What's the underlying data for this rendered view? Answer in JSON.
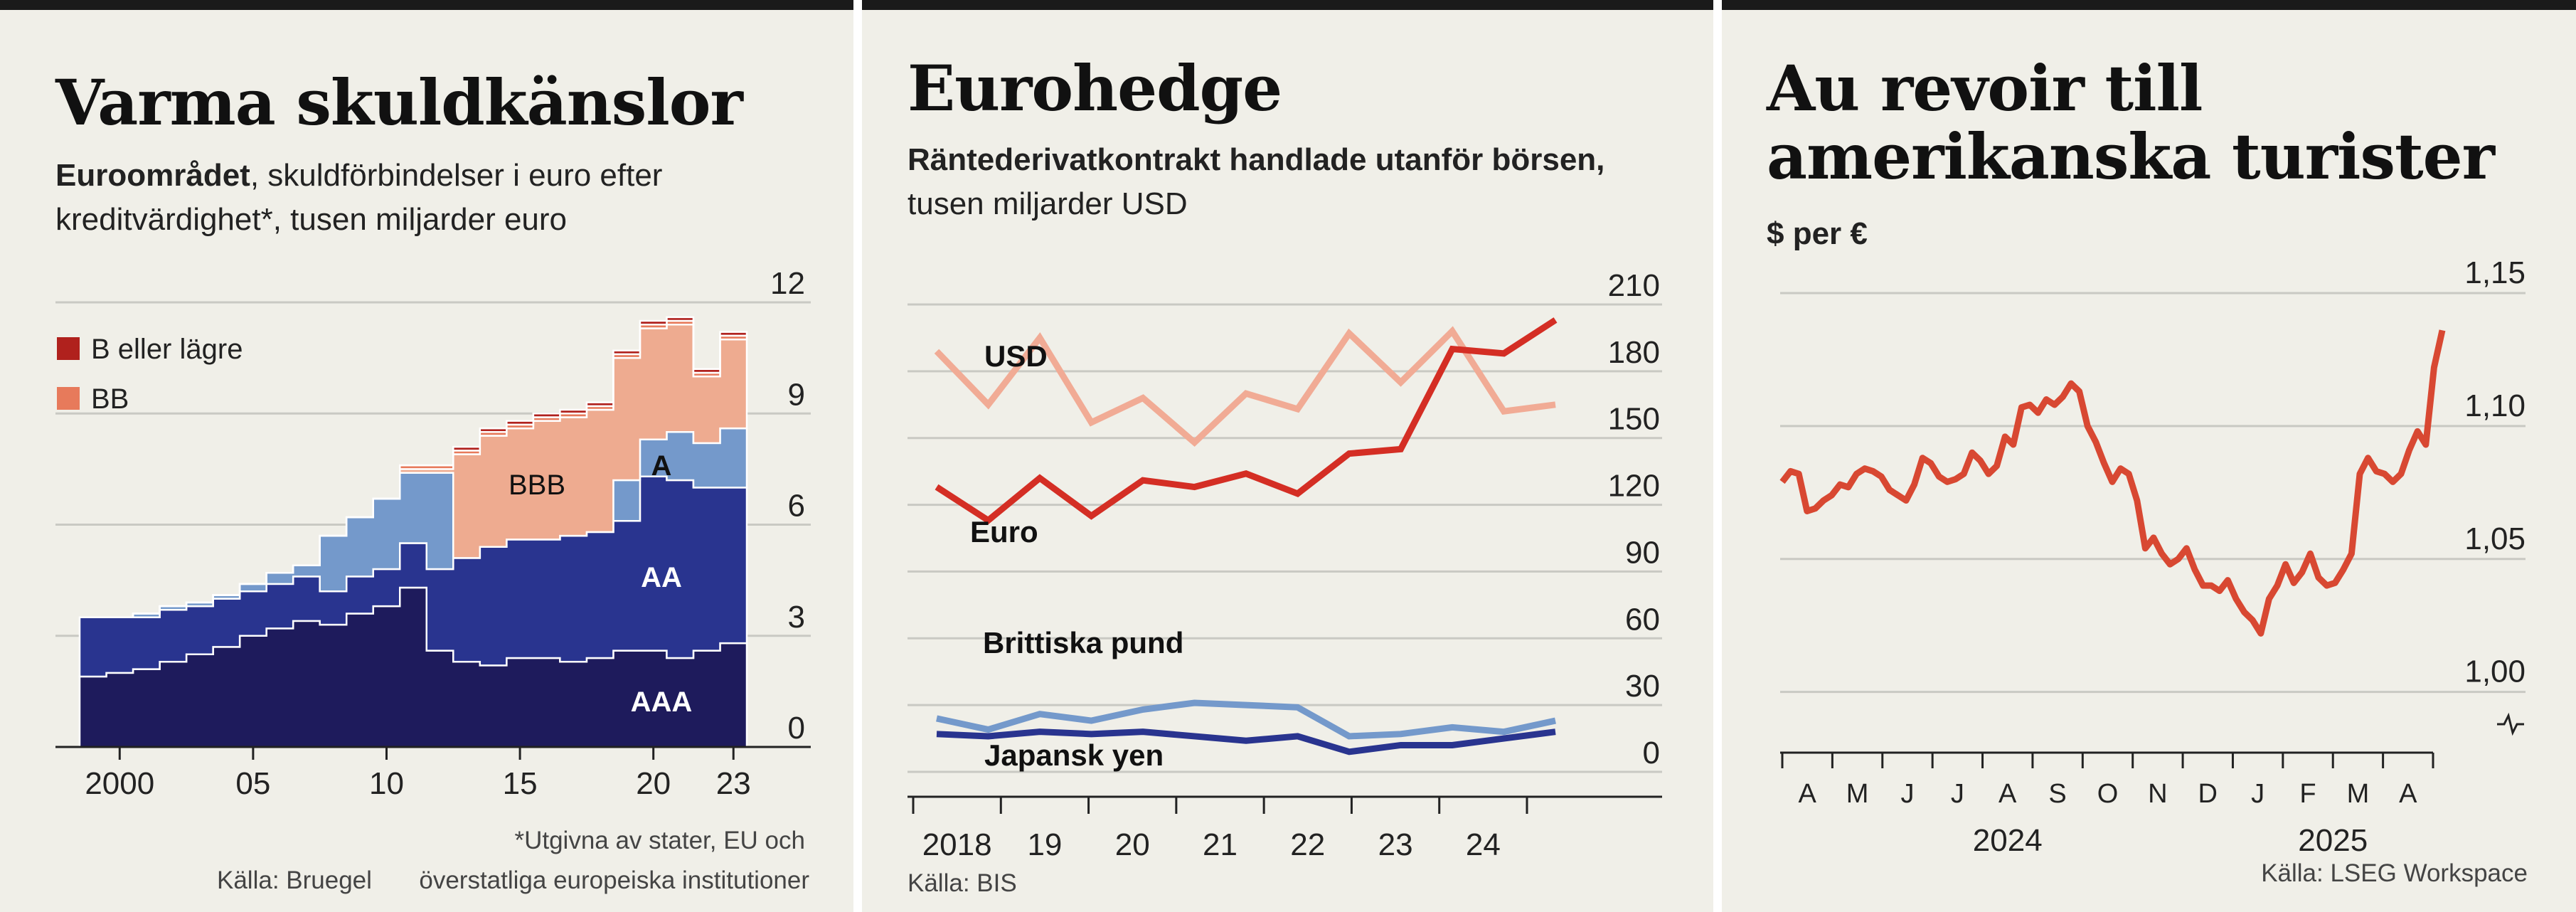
{
  "panels": [
    {
      "title": "Varma skuldkänslor",
      "subtitle_bold": "Euroområdet",
      "subtitle_rest": ", skuldförbindelser i euro efter kreditvärdighet*, tusen miljarder euro",
      "footnote_1": "*Utgivna av stater, EU och",
      "footnote_2": "överstatliga europeiska institutioner",
      "source": "Källa: Bruegel"
    },
    {
      "title": "Eurohedge",
      "subtitle_bold": "Räntederivatkontrakt handlade utanför börsen,",
      "subtitle_rest": "tusen miljarder USD",
      "source": "Källa: BIS"
    },
    {
      "title_line1": "Au revoir till",
      "title_line2": "amerikanska turister",
      "subtitle_bold": "$ per €",
      "source": "Källa: LSEG Workspace"
    }
  ],
  "chart_data": [
    {
      "type": "area",
      "stacked": true,
      "x": [
        1999,
        2000,
        2001,
        2002,
        2003,
        2004,
        2005,
        2006,
        2007,
        2008,
        2009,
        2010,
        2011,
        2012,
        2013,
        2014,
        2015,
        2016,
        2017,
        2018,
        2019,
        2020,
        2021,
        2022,
        2023
      ],
      "series": [
        {
          "name": "AAA",
          "color": "#1e1b5c",
          "values": [
            1.9,
            2.0,
            2.1,
            2.3,
            2.5,
            2.7,
            3.0,
            3.2,
            3.4,
            3.3,
            3.6,
            3.8,
            4.3,
            2.6,
            2.3,
            2.2,
            2.4,
            2.4,
            2.3,
            2.4,
            2.6,
            2.6,
            2.4,
            2.6,
            2.8
          ]
        },
        {
          "name": "AA",
          "color": "#29348f",
          "values": [
            1.6,
            1.5,
            1.4,
            1.4,
            1.3,
            1.3,
            1.2,
            1.2,
            1.2,
            0.9,
            1.0,
            1.0,
            1.2,
            2.2,
            2.8,
            3.2,
            3.2,
            3.2,
            3.4,
            3.4,
            3.5,
            4.7,
            4.8,
            4.4,
            4.2
          ]
        },
        {
          "name": "A",
          "color": "#7499cb",
          "values": [
            0.0,
            0.0,
            0.1,
            0.1,
            0.1,
            0.1,
            0.2,
            0.3,
            0.3,
            1.5,
            1.6,
            1.9,
            1.9,
            2.6,
            0.0,
            0.0,
            0.0,
            0.0,
            0.0,
            0.0,
            1.1,
            1.0,
            1.3,
            1.2,
            1.6
          ]
        },
        {
          "name": "BBB",
          "color": "#eeab90",
          "values": [
            0.0,
            0.0,
            0.0,
            0.0,
            0.0,
            0.0,
            0.0,
            0.0,
            0.0,
            0.0,
            0.0,
            0.0,
            0.1,
            0.1,
            2.8,
            3.0,
            3.0,
            3.2,
            3.2,
            3.3,
            3.3,
            3.0,
            2.9,
            1.8,
            2.4
          ]
        },
        {
          "name": "BB",
          "color": "#e77a5b",
          "values": [
            0.0,
            0.0,
            0.0,
            0.0,
            0.0,
            0.0,
            0.0,
            0.0,
            0.0,
            0.0,
            0.0,
            0.0,
            0.1,
            0.1,
            0.1,
            0.1,
            0.1,
            0.1,
            0.1,
            0.1,
            0.1,
            0.1,
            0.1,
            0.1,
            0.1
          ]
        },
        {
          "name": "B eller lägre",
          "color": "#b0211d",
          "values": [
            0.0,
            0.0,
            0.0,
            0.0,
            0.0,
            0.0,
            0.0,
            0.0,
            0.0,
            0.0,
            0.0,
            0.0,
            0.0,
            0.0,
            0.1,
            0.1,
            0.1,
            0.1,
            0.1,
            0.1,
            0.1,
            0.1,
            0.1,
            0.1,
            0.1
          ]
        }
      ],
      "legend": [
        "B eller lägre",
        "BB"
      ],
      "area_labels": [
        "AAA",
        "AA",
        "A",
        "BBB"
      ],
      "ylim": [
        0,
        12
      ],
      "yticks": [
        "0",
        "3",
        "6",
        "9",
        "12"
      ],
      "xticks": [
        "2000",
        "05",
        "10",
        "15",
        "20",
        "23"
      ],
      "grid": true,
      "y_axis_side": "right"
    },
    {
      "type": "line",
      "x": [
        "2018H1",
        "2018H2",
        "2019H1",
        "2019H2",
        "2020H1",
        "2020H2",
        "2021H1",
        "2021H2",
        "2022H1",
        "2022H2",
        "2023H1",
        "2023H2",
        "2024H1"
      ],
      "series": [
        {
          "name": "USD",
          "color": "#f1ab95",
          "values": [
            189,
            165,
            195,
            157,
            168,
            148,
            170,
            163,
            197,
            175,
            198,
            162,
            165
          ]
        },
        {
          "name": "Euro",
          "color": "#d42e24",
          "values": [
            128,
            113,
            132,
            115,
            131,
            128,
            134,
            125,
            143,
            145,
            190,
            188,
            203
          ]
        },
        {
          "name": "Brittiska pund",
          "color": "#7499cb",
          "values": [
            24,
            19,
            26,
            23,
            28,
            31,
            30,
            29,
            16,
            17,
            20,
            18,
            23
          ]
        },
        {
          "name": "Japansk yen",
          "color": "#29348f",
          "values": [
            17,
            16,
            18,
            17,
            18,
            16,
            14,
            16,
            9,
            12,
            12,
            15,
            18
          ]
        }
      ],
      "ylim": [
        0,
        210
      ],
      "yticks": [
        "0",
        "30",
        "60",
        "90",
        "120",
        "150",
        "180",
        "210"
      ],
      "xticks": [
        "2018",
        "19",
        "20",
        "21",
        "22",
        "23",
        "24"
      ],
      "grid": true,
      "y_axis_side": "right"
    },
    {
      "type": "line",
      "x_start": "2024-04-01",
      "x_end": "2025-04-11",
      "series": [
        {
          "name": "",
          "color": "#d84832",
          "values": [
            1.079,
            1.083,
            1.082,
            1.068,
            1.069,
            1.072,
            1.074,
            1.078,
            1.077,
            1.082,
            1.084,
            1.083,
            1.081,
            1.076,
            1.074,
            1.072,
            1.078,
            1.088,
            1.086,
            1.081,
            1.079,
            1.08,
            1.082,
            1.09,
            1.087,
            1.082,
            1.085,
            1.096,
            1.093,
            1.107,
            1.108,
            1.105,
            1.11,
            1.108,
            1.111,
            1.116,
            1.113,
            1.1,
            1.094,
            1.086,
            1.079,
            1.084,
            1.082,
            1.072,
            1.054,
            1.058,
            1.052,
            1.048,
            1.05,
            1.054,
            1.046,
            1.04,
            1.04,
            1.038,
            1.042,
            1.035,
            1.03,
            1.027,
            1.022,
            1.035,
            1.04,
            1.048,
            1.041,
            1.045,
            1.052,
            1.043,
            1.04,
            1.041,
            1.046,
            1.052,
            1.082,
            1.088,
            1.083,
            1.082,
            1.079,
            1.082,
            1.091,
            1.098,
            1.093,
            1.122,
            1.136
          ]
        }
      ],
      "ylim": [
        0.99,
        1.15
      ],
      "yticks": [
        "1,00",
        "1,05",
        "1,10",
        "1,15"
      ],
      "xticks": [
        "A",
        "M",
        "J",
        "J",
        "A",
        "S",
        "O",
        "N",
        "D",
        "J",
        "F",
        "M",
        "A"
      ],
      "xgroups": [
        "2024",
        "2025"
      ],
      "grid": true,
      "y_axis_side": "right"
    }
  ]
}
